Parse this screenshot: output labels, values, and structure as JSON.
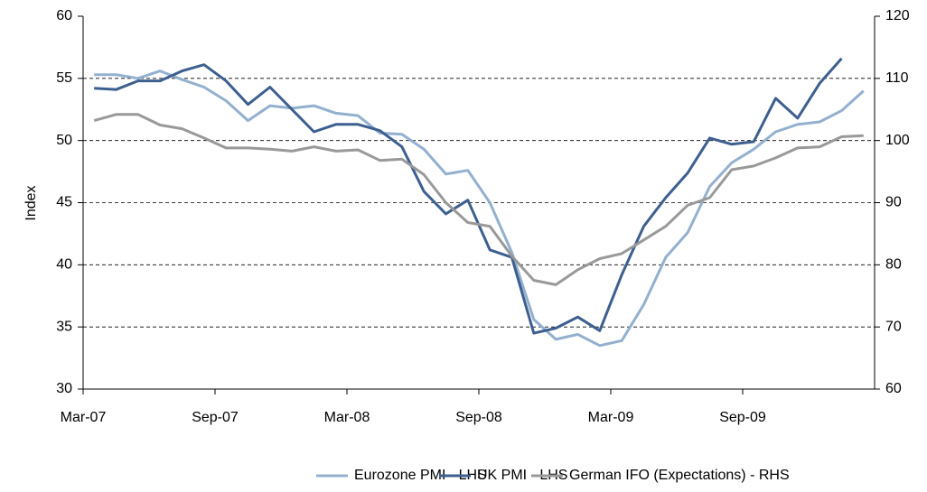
{
  "chart_data": {
    "type": "line",
    "ylabel": "Index",
    "categories": [
      "Mar-07",
      null,
      null,
      null,
      null,
      null,
      "Sep-07",
      null,
      null,
      null,
      null,
      null,
      "Mar-08",
      null,
      null,
      null,
      null,
      null,
      "Sep-08",
      null,
      null,
      null,
      null,
      null,
      "Mar-09",
      null,
      null,
      null,
      null,
      null,
      "Sep-09",
      null,
      null,
      null,
      null,
      null
    ],
    "series": [
      {
        "name": "Eurozone PMI - LHS",
        "color": "#93b0cf",
        "values": [
          55.3,
          55.3,
          55.0,
          55.6,
          54.9,
          54.3,
          53.2,
          51.6,
          52.8,
          52.6,
          52.8,
          52.2,
          52.0,
          50.6,
          50.5,
          49.3,
          47.3,
          47.6,
          45.0,
          41.0,
          35.6,
          34.0,
          34.4,
          33.5,
          33.9,
          36.8,
          40.6,
          42.6,
          46.3,
          48.2,
          49.3,
          50.7,
          51.3,
          51.5,
          52.4,
          54.0
        ]
      },
      {
        "name": "UK PMI - LHS",
        "color": "#3d5f8f",
        "values": [
          54.2,
          54.1,
          54.8,
          54.8,
          55.6,
          56.1,
          54.8,
          52.9,
          54.3,
          52.5,
          50.7,
          51.3,
          51.3,
          50.8,
          49.5,
          45.9,
          44.1,
          45.2,
          41.2,
          40.6,
          34.5,
          34.9,
          35.8,
          34.7,
          39.2,
          43.1,
          45.4,
          47.4,
          50.2,
          49.7,
          49.9,
          53.4,
          51.8,
          54.6,
          56.6,
          null
        ]
      },
      {
        "name": "German IFO (Expectations) - RHS",
        "color": "#999999",
        "axis": "y2",
        "values": [
          103.2,
          104.2,
          104.2,
          102.5,
          101.9,
          100.4,
          98.8,
          98.8,
          98.6,
          98.3,
          99.0,
          98.3,
          98.5,
          96.8,
          97.0,
          94.5,
          90.0,
          86.8,
          86.2,
          81.4,
          77.5,
          76.8,
          79.2,
          81.0,
          81.8,
          84.0,
          86.2,
          89.6,
          90.8,
          95.3,
          95.9,
          97.2,
          98.8,
          99.0,
          100.6,
          100.8
        ]
      }
    ],
    "ylim": [
      30,
      60
    ],
    "yticks": [
      30,
      35,
      40,
      45,
      50,
      55,
      60
    ],
    "y2lim": [
      60,
      120
    ],
    "y2ticks": [
      60,
      70,
      80,
      90,
      100,
      110,
      120
    ],
    "grid": true,
    "legend": "bottom"
  }
}
